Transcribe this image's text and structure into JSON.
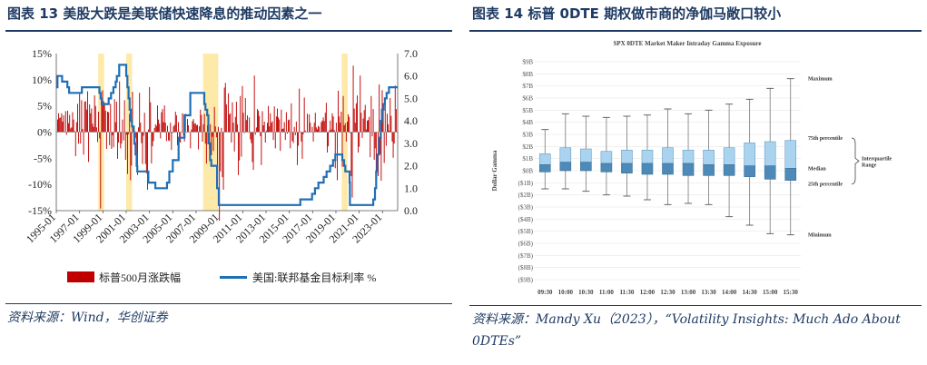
{
  "panels": [
    {
      "title": "图表 13   美股大跌是美联储快速降息的推动因素之一",
      "source": "资料来源：Wind，华创证券"
    },
    {
      "title": "图表 14   标普 0DTE 期权做市商的净伽马敞口较小",
      "source": "资料来源：Mandy Xu（2023），“Volatility Insights: Much Ado About 0DTEs”"
    }
  ],
  "chart_data": [
    {
      "type": "bar",
      "title": "",
      "x_tick_labels": [
        "1995-01",
        "1997-01",
        "1999-01",
        "2001-01",
        "2003-01",
        "2005-01",
        "2007-01",
        "2009-01",
        "2011-01",
        "2013-01",
        "2015-01",
        "2017-01",
        "2019-01",
        "2021-01",
        "2023-01"
      ],
      "y_left": {
        "ticks": [
          "15%",
          "10%",
          "5%",
          "0%",
          "-5%",
          "-10%",
          "-15%"
        ],
        "ylim": [
          -15,
          15
        ],
        "unit": "%"
      },
      "y_right": {
        "ticks": [
          "7.0",
          "6.0",
          "5.0",
          "4.0",
          "3.0",
          "2.0",
          "1.0",
          "0.0"
        ],
        "ylim": [
          0,
          7
        ]
      },
      "xlim": [
        1995.0,
        2024.3
      ],
      "shaded_periods": [
        [
          1998.6,
          1999.1
        ],
        [
          2001.0,
          2001.5
        ],
        [
          2007.6,
          2008.9
        ],
        [
          2019.5,
          2020.0
        ]
      ],
      "series": [
        {
          "name": "标普500月涨跌幅",
          "type": "bar",
          "color": "#c00000",
          "axis": "left",
          "values": [
            2.4,
            3.6,
            2.7,
            2.8,
            3.6,
            2.0,
            3.2,
            -0.1,
            4.0,
            -0.5,
            4.1,
            1.7,
            3.3,
            0.7,
            0.9,
            3.8,
            2.4,
            0.2,
            -4.6,
            1.9,
            5.4,
            -2.2,
            7.3,
            -2.2,
            6.1,
            0.6,
            -4.3,
            5.8,
            5.9,
            4.3,
            7.8,
            -5.7,
            5.3,
            3.6,
            4.5,
            1.6,
            1.0,
            7.0,
            5.0,
            0.9,
            -1.9,
            3.9,
            -1.2,
            -14.6,
            6.2,
            8.0,
            5.9,
            5.6,
            4.1,
            -3.2,
            3.9,
            3.8,
            -2.5,
            5.4,
            -3.2,
            -0.6,
            -2.9,
            6.3,
            1.9,
            5.8,
            -5.1,
            -2.0,
            9.7,
            -3.1,
            -2.2,
            2.4,
            -1.6,
            6.1,
            -5.3,
            -0.5,
            -8.0,
            -0.4,
            3.5,
            -9.2,
            -6.4,
            7.7,
            0.5,
            -2.5,
            -1.1,
            -6.4,
            -8.2,
            0.9,
            7.5,
            1.8,
            -2.1,
            -6.1,
            -0.7,
            3.7,
            -6.1,
            -7.9,
            -11.0,
            0.5,
            8.6,
            5.7,
            -6.0,
            -2.7,
            -1.7,
            0.8,
            1.5,
            1.2,
            5.1,
            2.4,
            1.6,
            -1.2,
            3.8,
            4.4,
            1.9,
            5.1,
            1.8,
            -1.7,
            1.2,
            -1.6,
            -1.7,
            1.8,
            -3.4,
            -0.2,
            1.1,
            1.4,
            3.9,
            3.2,
            -2.5,
            1.9,
            -1.9,
            -2.0,
            -0.1,
            3.6,
            -0.7,
            -1.8,
            3.5,
            -0.1,
            2.5,
            1.3,
            0.0,
            -3.1,
            0.5,
            2.1,
            2.5,
            1.6,
            1.7,
            1.3,
            1.4,
            -3.3,
            1.1,
            4.3,
            3.3,
            -1.8,
            1.5,
            3.5,
            -2.2,
            -6.0,
            1.3,
            -0.4,
            -3.2,
            1.5,
            -4.4,
            -0.9,
            -3.6,
            4.8,
            1.1,
            -1.0,
            -8.6,
            1.0,
            -16.9,
            -7.5,
            0.8,
            -8.6,
            -11.0,
            8.5,
            9.4,
            5.3,
            0.0,
            7.4,
            3.4,
            3.6,
            -2.0,
            5.7,
            1.8,
            -3.7,
            2.9,
            5.8,
            1.5,
            -8.2,
            -5.4,
            6.9,
            -4.7,
            8.8,
            3.7,
            -0.2,
            6.5,
            2.3,
            3.2,
            -0.1,
            2.8,
            -1.4,
            -2.1,
            -5.7,
            -7.2,
            10.8,
            -0.5,
            0.9,
            4.4,
            4.1,
            3.1,
            -0.8,
            -6.3,
            4.0,
            1.3,
            2.0,
            -2.0,
            0.3,
            1.8,
            5.0,
            1.1,
            3.6,
            1.8,
            2.1,
            -1.5,
            4.9,
            -3.1,
            3.0,
            4.5,
            2.8,
            2.4,
            -3.6,
            4.3,
            0.6,
            0.7,
            1.9,
            -1.5,
            3.8,
            -0.3,
            2.3,
            2.4,
            -3.1,
            5.5,
            -1.7,
            -2.1,
            1.0,
            -0.6,
            2.0,
            -6.3,
            -2.6,
            8.3,
            0.1,
            -1.8,
            -5.1,
            -0.4,
            6.6,
            0.3,
            -0.1,
            3.5,
            -0.1,
            3.4,
            1.8,
            0.0,
            1.0,
            -1.8,
            1.8,
            3.7,
            0.9,
            0.5,
            1.2,
            1.0,
            0.1,
            1.9,
            2.2,
            2.8,
            2.1,
            3.7,
            5.6,
            -3.9,
            -2.7,
            0.3,
            2.2,
            0.5,
            3.6,
            3.0,
            0.4,
            -6.9,
            1.8,
            -9.2,
            7.9,
            3.0,
            1.8,
            3.9,
            -6.6,
            6.9,
            1.3,
            1.7,
            -1.8,
            2.0,
            3.4,
            2.9,
            -0.2,
            -8.4,
            -12.5,
            12.7,
            4.5,
            1.8,
            5.5,
            7.0,
            -3.9,
            -2.8,
            10.8,
            3.7,
            -1.1,
            2.6,
            4.2,
            5.2,
            0.5,
            2.2,
            2.3,
            2.9,
            -4.8,
            6.9,
            -0.8,
            4.4,
            -5.3,
            -3.1,
            -8.8,
            0.0,
            -8.4,
            9.1,
            -4.2,
            -9.3,
            8.0,
            5.4,
            -5.9,
            6.2,
            -2.6,
            3.5,
            1.5,
            0.3,
            6.5,
            3.1,
            -1.8,
            -4.9,
            -2.2,
            8.9,
            4.4
          ]
        },
        {
          "name": "美国:联邦基金目标利率 %",
          "type": "line",
          "color": "#1f6fb5",
          "axis": "right",
          "points": [
            [
              1995.0,
              5.5
            ],
            [
              1995.1,
              6.0
            ],
            [
              1995.5,
              5.75
            ],
            [
              1995.95,
              5.5
            ],
            [
              1996.1,
              5.25
            ],
            [
              1997.2,
              5.5
            ],
            [
              1998.7,
              5.25
            ],
            [
              1998.8,
              5.0
            ],
            [
              1998.9,
              4.75
            ],
            [
              1999.5,
              5.0
            ],
            [
              1999.7,
              5.25
            ],
            [
              1999.9,
              5.5
            ],
            [
              2000.1,
              5.75
            ],
            [
              2000.2,
              6.0
            ],
            [
              2000.4,
              6.5
            ],
            [
              2001.0,
              6.0
            ],
            [
              2001.1,
              5.5
            ],
            [
              2001.2,
              5.0
            ],
            [
              2001.3,
              4.5
            ],
            [
              2001.4,
              4.0
            ],
            [
              2001.5,
              3.75
            ],
            [
              2001.65,
              3.5
            ],
            [
              2001.7,
              3.0
            ],
            [
              2001.8,
              2.5
            ],
            [
              2001.9,
              2.0
            ],
            [
              2001.95,
              1.75
            ],
            [
              2002.9,
              1.25
            ],
            [
              2003.5,
              1.0
            ],
            [
              2004.5,
              1.25
            ],
            [
              2004.7,
              1.75
            ],
            [
              2005.0,
              2.25
            ],
            [
              2005.5,
              3.25
            ],
            [
              2006.0,
              4.25
            ],
            [
              2006.5,
              5.25
            ],
            [
              2007.7,
              4.75
            ],
            [
              2007.8,
              4.5
            ],
            [
              2007.95,
              4.25
            ],
            [
              2008.05,
              3.0
            ],
            [
              2008.2,
              2.25
            ],
            [
              2008.3,
              2.0
            ],
            [
              2008.8,
              1.0
            ],
            [
              2008.95,
              0.25
            ],
            [
              2015.95,
              0.5
            ],
            [
              2016.95,
              0.75
            ],
            [
              2017.2,
              1.0
            ],
            [
              2017.5,
              1.25
            ],
            [
              2017.95,
              1.5
            ],
            [
              2018.2,
              1.75
            ],
            [
              2018.5,
              2.0
            ],
            [
              2018.75,
              2.25
            ],
            [
              2018.95,
              2.5
            ],
            [
              2019.55,
              2.25
            ],
            [
              2019.7,
              2.0
            ],
            [
              2019.8,
              1.75
            ],
            [
              2020.17,
              1.25
            ],
            [
              2020.2,
              0.25
            ],
            [
              2022.2,
              0.5
            ],
            [
              2022.35,
              1.0
            ],
            [
              2022.45,
              1.75
            ],
            [
              2022.55,
              2.5
            ],
            [
              2022.7,
              3.25
            ],
            [
              2022.85,
              4.0
            ],
            [
              2022.95,
              4.5
            ],
            [
              2023.1,
              4.75
            ],
            [
              2023.2,
              5.0
            ],
            [
              2023.35,
              5.25
            ],
            [
              2023.55,
              5.5
            ],
            [
              2024.3,
              5.5
            ]
          ]
        }
      ],
      "legend": [
        "标普500月涨跌幅",
        "美国:联邦基金目标利率 %"
      ]
    },
    {
      "type": "box",
      "title": "SPX 0DTE Market Maker Intraday Gamma Exposure",
      "xlabel": "",
      "ylabel": "Dollar Gamma",
      "categories": [
        "09:30",
        "10:00",
        "10:30",
        "11:00",
        "11:30",
        "12:00",
        "12:30",
        "13:00",
        "13:30",
        "14:00",
        "14:30",
        "15:00",
        "15:30"
      ],
      "y_ticks": [
        "$9B",
        "$8B",
        "$7B",
        "$6B",
        "$5B",
        "$4B",
        "$3B",
        "$2B",
        "$1B",
        "$0B",
        "($1B)",
        "($2B)",
        "($3B)",
        "($4B)",
        "($5B)",
        "($6B)",
        "($7B)",
        "($8B)",
        "($9B)"
      ],
      "ylim": [
        -9,
        9
      ],
      "unit": "$B",
      "boxes": [
        {
          "min": -1.5,
          "q1": -0.1,
          "median": 0.5,
          "q3": 1.4,
          "max": 3.4
        },
        {
          "min": -1.5,
          "q1": 0.0,
          "median": 0.7,
          "q3": 1.9,
          "max": 4.7
        },
        {
          "min": -1.7,
          "q1": 0.0,
          "median": 0.7,
          "q3": 1.8,
          "max": 4.5
        },
        {
          "min": -2.0,
          "q1": -0.1,
          "median": 0.6,
          "q3": 1.6,
          "max": 4.4
        },
        {
          "min": -2.1,
          "q1": -0.2,
          "median": 0.6,
          "q3": 1.7,
          "max": 4.5
        },
        {
          "min": -2.4,
          "q1": -0.3,
          "median": 0.6,
          "q3": 1.7,
          "max": 4.6
        },
        {
          "min": -2.8,
          "q1": -0.3,
          "median": 0.6,
          "q3": 1.9,
          "max": 5.1
        },
        {
          "min": -2.7,
          "q1": -0.4,
          "median": 0.6,
          "q3": 1.7,
          "max": 4.7
        },
        {
          "min": -2.8,
          "q1": -0.4,
          "median": 0.5,
          "q3": 1.7,
          "max": 5.0
        },
        {
          "min": -3.8,
          "q1": -0.4,
          "median": 0.5,
          "q3": 1.9,
          "max": 5.5
        },
        {
          "min": -4.5,
          "q1": -0.5,
          "median": 0.4,
          "q3": 2.3,
          "max": 5.9
        },
        {
          "min": -5.2,
          "q1": -0.7,
          "median": 0.4,
          "q3": 2.4,
          "max": 6.8
        },
        {
          "min": -5.3,
          "q1": -0.8,
          "median": 0.2,
          "q3": 2.5,
          "max": 7.6
        }
      ],
      "annotations": [
        "Maximum",
        "75th percentile",
        "Median",
        "25th percentile",
        "Minimum",
        "Interquartile Range"
      ]
    }
  ]
}
